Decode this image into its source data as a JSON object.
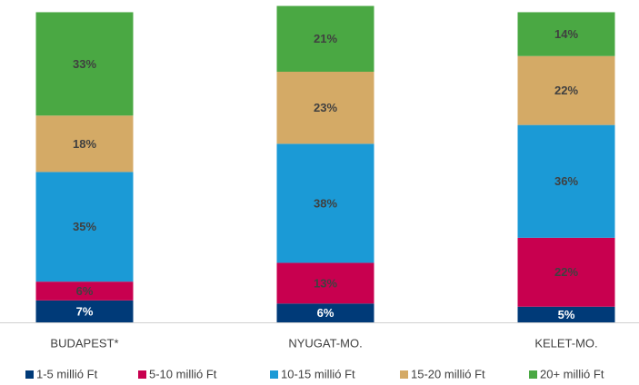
{
  "chart_data": {
    "type": "stacked_bar",
    "categories": [
      "BUDAPEST*",
      "NYUGAT-MO.",
      "KELET-MO."
    ],
    "ylim": [
      0,
      100
    ],
    "series": [
      {
        "name": "1-5 millió Ft",
        "color": "#003a78",
        "values": [
          7,
          6,
          5
        ],
        "value_labels": [
          "7%",
          "6%",
          "5%"
        ]
      },
      {
        "name": "5-10 millió Ft",
        "color": "#c8004f",
        "values": [
          6,
          13,
          22
        ],
        "value_labels": [
          "6%",
          "13%",
          "22%"
        ]
      },
      {
        "name": "10-15 millió Ft",
        "color": "#1b9ad6",
        "values": [
          35,
          38,
          36
        ],
        "value_labels": [
          "35%",
          "38%",
          "36%"
        ]
      },
      {
        "name": "15-20 millió Ft",
        "color": "#d4aa66",
        "values": [
          18,
          23,
          22
        ],
        "value_labels": [
          "18%",
          "23%",
          "22%"
        ]
      },
      {
        "name": "20+ millió Ft",
        "color": "#4aa843",
        "values": [
          33,
          21,
          14
        ],
        "value_labels": [
          "33%",
          "21%",
          "14%"
        ]
      }
    ]
  }
}
